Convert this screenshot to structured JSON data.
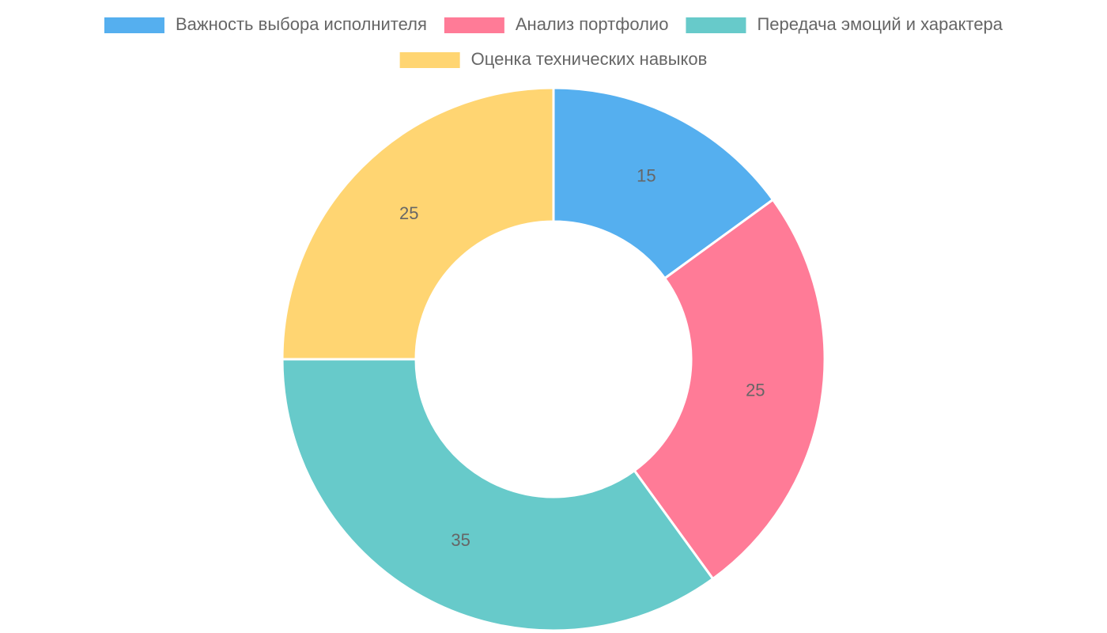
{
  "chart_data": {
    "type": "doughnut",
    "categories": [
      "Важность выбора исполнителя",
      "Анализ портфолио",
      "Передача эмоций и характера",
      "Оценка технических навыков"
    ],
    "values": [
      15,
      25,
      35,
      25
    ],
    "colors": [
      "#55afef",
      "#ff7b97",
      "#67caca",
      "#ffd572"
    ],
    "legend": "top"
  }
}
